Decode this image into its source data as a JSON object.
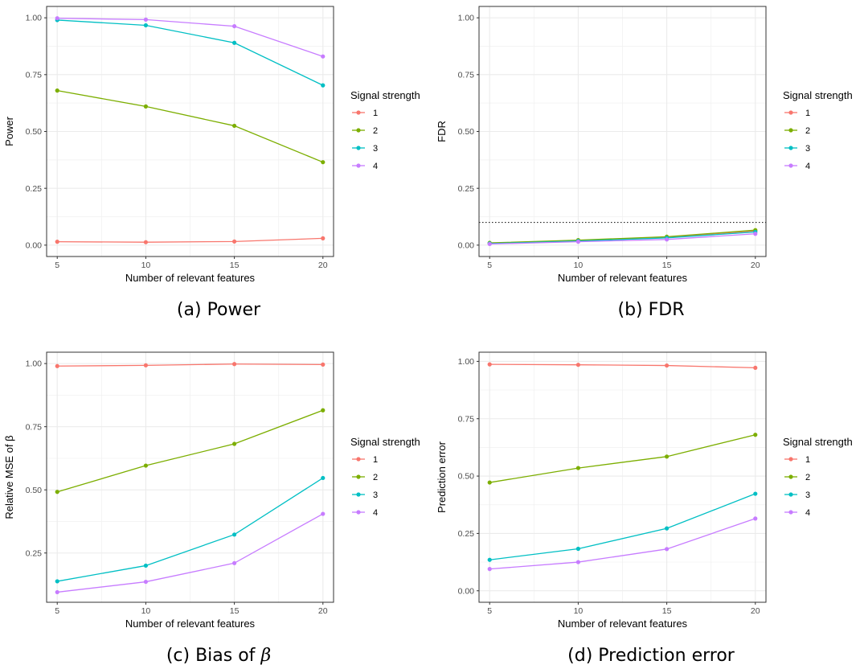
{
  "colors": {
    "1": "#F8766D",
    "2": "#7CAE00",
    "3": "#00BFC4",
    "4": "#C77CFF"
  },
  "legend_title": "Signal strength",
  "chart_data": [
    {
      "type": "line",
      "caption": "(a) Power",
      "xlabel": "Number of relevant features",
      "ylabel": "Power",
      "x": [
        5,
        10,
        15,
        20
      ],
      "xlim": [
        4.4,
        20.6
      ],
      "ylim": [
        -0.05,
        1.05
      ],
      "yticks": [
        0.0,
        0.25,
        0.5,
        0.75,
        1.0
      ],
      "ytick_labels": [
        "0.00",
        "0.25",
        "0.50",
        "0.75",
        "1.00"
      ],
      "xticks": [
        5,
        10,
        15,
        20
      ],
      "xtick_labels": [
        "5",
        "10",
        "15",
        "20"
      ],
      "legend": [
        "1",
        "2",
        "3",
        "4"
      ],
      "series": [
        {
          "name": "1",
          "values": [
            0.015,
            0.013,
            0.016,
            0.03
          ]
        },
        {
          "name": "2",
          "values": [
            0.68,
            0.61,
            0.525,
            0.365
          ]
        },
        {
          "name": "3",
          "values": [
            0.99,
            0.967,
            0.89,
            0.703
          ]
        },
        {
          "name": "4",
          "values": [
            0.998,
            0.992,
            0.963,
            0.83
          ]
        }
      ],
      "hline": null
    },
    {
      "type": "line",
      "caption": "(b) FDR",
      "xlabel": "Number of relevant features",
      "ylabel": "FDR",
      "x": [
        5,
        10,
        15,
        20
      ],
      "xlim": [
        4.4,
        20.6
      ],
      "ylim": [
        -0.05,
        1.05
      ],
      "yticks": [
        0.0,
        0.25,
        0.5,
        0.75,
        1.0
      ],
      "ytick_labels": [
        "0.00",
        "0.25",
        "0.50",
        "0.75",
        "1.00"
      ],
      "xticks": [
        5,
        10,
        15,
        20
      ],
      "xtick_labels": [
        "5",
        "10",
        "15",
        "20"
      ],
      "legend": [
        "1",
        "2",
        "3",
        "4"
      ],
      "series": [
        {
          "name": "1",
          "values": [
            0.008,
            0.02,
            0.035,
            0.063
          ]
        },
        {
          "name": "2",
          "values": [
            0.01,
            0.022,
            0.037,
            0.066
          ]
        },
        {
          "name": "3",
          "values": [
            0.007,
            0.018,
            0.032,
            0.058
          ]
        },
        {
          "name": "4",
          "values": [
            0.005,
            0.015,
            0.025,
            0.05
          ]
        }
      ],
      "hline": 0.1
    },
    {
      "type": "line",
      "caption": "(c) Bias of β",
      "xlabel": "Number of relevant features",
      "ylabel": "Relative MSE of β",
      "x": [
        5,
        10,
        15,
        20
      ],
      "xlim": [
        4.4,
        20.6
      ],
      "ylim": [
        0.055,
        1.045
      ],
      "yticks": [
        0.25,
        0.5,
        0.75,
        1.0
      ],
      "ytick_labels": [
        "0.25",
        "0.50",
        "0.75",
        "1.00"
      ],
      "xticks": [
        5,
        10,
        15,
        20
      ],
      "xtick_labels": [
        "5",
        "10",
        "15",
        "20"
      ],
      "legend": [
        "1",
        "2",
        "3",
        "4"
      ],
      "series": [
        {
          "name": "1",
          "values": [
            0.99,
            0.993,
            0.998,
            0.996
          ]
        },
        {
          "name": "2",
          "values": [
            0.492,
            0.596,
            0.682,
            0.815
          ]
        },
        {
          "name": "3",
          "values": [
            0.138,
            0.2,
            0.323,
            0.547
          ]
        },
        {
          "name": "4",
          "values": [
            0.095,
            0.136,
            0.21,
            0.405
          ]
        }
      ],
      "hline": null
    },
    {
      "type": "line",
      "caption": "(d) Prediction error",
      "xlabel": "Number of relevant features",
      "ylabel": "Prediction error",
      "x": [
        5,
        10,
        15,
        20
      ],
      "xlim": [
        4.4,
        20.6
      ],
      "ylim": [
        -0.05,
        1.04
      ],
      "yticks": [
        0.0,
        0.25,
        0.5,
        0.75,
        1.0
      ],
      "ytick_labels": [
        "0.00",
        "0.25",
        "0.50",
        "0.75",
        "1.00"
      ],
      "xticks": [
        5,
        10,
        15,
        20
      ],
      "xtick_labels": [
        "5",
        "10",
        "15",
        "20"
      ],
      "legend": [
        "1",
        "2",
        "3",
        "4"
      ],
      "series": [
        {
          "name": "1",
          "values": [
            0.987,
            0.985,
            0.982,
            0.972
          ]
        },
        {
          "name": "2",
          "values": [
            0.472,
            0.535,
            0.585,
            0.68
          ]
        },
        {
          "name": "3",
          "values": [
            0.135,
            0.183,
            0.272,
            0.423
          ]
        },
        {
          "name": "4",
          "values": [
            0.095,
            0.125,
            0.182,
            0.315
          ]
        }
      ],
      "hline": null
    }
  ]
}
